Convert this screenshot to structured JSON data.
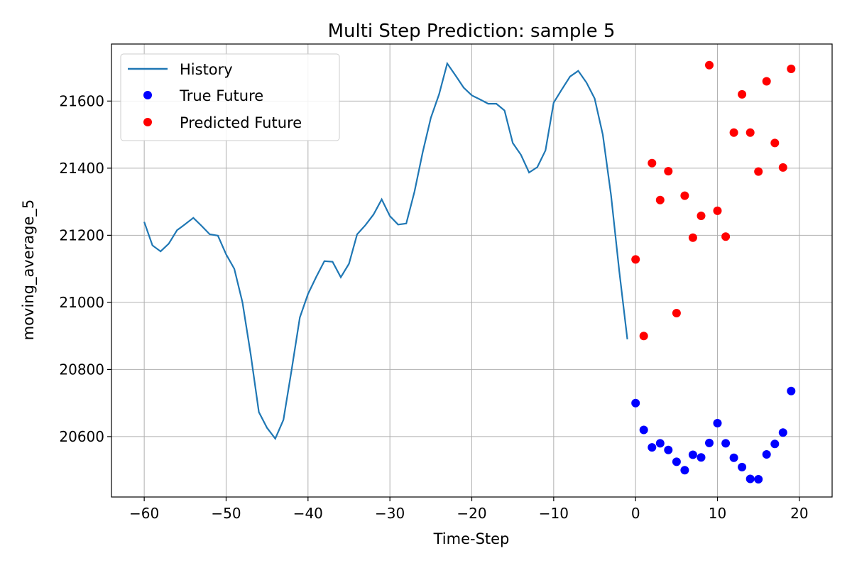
{
  "chart_data": {
    "type": "line",
    "title": "Multi Step Prediction: sample 5",
    "xlabel": "Time-Step",
    "ylabel": "moving_average_5",
    "xlim": [
      -64,
      24
    ],
    "ylim": [
      20420,
      21770
    ],
    "xticks": [
      -60,
      -50,
      -40,
      -30,
      -20,
      -10,
      0,
      10,
      20
    ],
    "yticks": [
      20600,
      20800,
      21000,
      21200,
      21400,
      21600
    ],
    "grid": true,
    "legend_position": "top-left",
    "series": [
      {
        "name": "History",
        "kind": "line",
        "color": "#1f77b4",
        "x": [
          -60,
          -59,
          -58,
          -57,
          -56,
          -55,
          -54,
          -53,
          -52,
          -51,
          -50,
          -49,
          -48,
          -47,
          -46,
          -45,
          -44,
          -43,
          -42,
          -41,
          -40,
          -39,
          -38,
          -37,
          -36,
          -35,
          -34,
          -33,
          -32,
          -31,
          -30,
          -29,
          -28,
          -27,
          -26,
          -25,
          -24,
          -23,
          -22,
          -21,
          -20,
          -19,
          -18,
          -17,
          -16,
          -15,
          -14,
          -13,
          -12,
          -11,
          -10,
          -9,
          -8,
          -7,
          -6,
          -5,
          -4,
          -3,
          -2,
          -1
        ],
        "y": [
          21240,
          21170,
          21152,
          21175,
          21215,
          21233,
          21252,
          21228,
          21203,
          21199,
          21143,
          21100,
          21000,
          20845,
          20673,
          20626,
          20594,
          20650,
          20800,
          20955,
          21025,
          21076,
          21123,
          21121,
          21075,
          21115,
          21203,
          21230,
          21262,
          21307,
          21257,
          21232,
          21235,
          21330,
          21447,
          21550,
          21620,
          21712,
          21677,
          21640,
          21617,
          21605,
          21592,
          21592,
          21572,
          21475,
          21440,
          21387,
          21403,
          21453,
          21595,
          21635,
          21673,
          21690,
          21655,
          21608,
          21500,
          21320,
          21095,
          20890
        ]
      },
      {
        "name": "True Future",
        "kind": "scatter",
        "color": "#0000ff",
        "x": [
          0,
          1,
          2,
          3,
          4,
          5,
          6,
          7,
          8,
          9,
          10,
          11,
          12,
          13,
          14,
          15,
          16,
          17,
          18,
          19
        ],
        "y": [
          20700,
          20620,
          20568,
          20580,
          20560,
          20525,
          20500,
          20546,
          20538,
          20581,
          20640,
          20580,
          20537,
          20509,
          20474,
          20473,
          20547,
          20578,
          20612,
          20736
        ]
      },
      {
        "name": "Predicted Future",
        "kind": "scatter",
        "color": "#ff0000",
        "x": [
          0,
          1,
          2,
          3,
          4,
          5,
          6,
          7,
          8,
          9,
          10,
          11,
          12,
          13,
          14,
          15,
          16,
          17,
          18,
          19
        ],
        "y": [
          21128,
          20900,
          21415,
          21305,
          21391,
          20968,
          21318,
          21193,
          21258,
          21707,
          21273,
          21196,
          21506,
          21620,
          21506,
          21390,
          21659,
          21475,
          21402,
          21696
        ]
      }
    ]
  }
}
